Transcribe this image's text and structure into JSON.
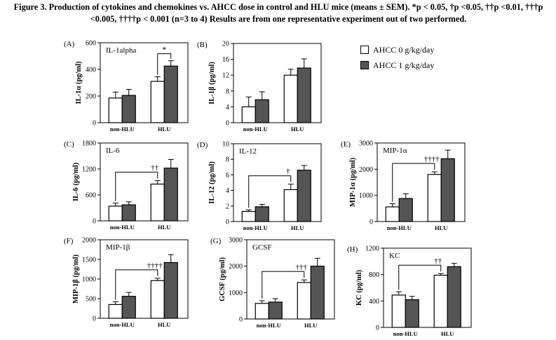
{
  "caption": "Figure 3. Production of cytokines and chemokines vs. AHCC dose in control and HLU mice (means ± SEM). *p < 0.05, †p <0.05, ††p <0.01, †††p <0.005, ††††p < 0.001 (n=3 to 4) Results are from one representative experiment out of two performed.",
  "legend": {
    "entries": [
      {
        "label": "AHCC 0 g/kg/day",
        "style": "open"
      },
      {
        "label": "AHCC 1 g/kg/day",
        "style": "filled"
      }
    ]
  },
  "colors": {
    "open_bar": "#ffffff",
    "filled_bar": "#555555",
    "axis": "#000000"
  },
  "chart_data": [
    {
      "type": "bar",
      "panel": "(A)",
      "title": "IL-1alpha",
      "ylabel": "IL-1α (pg/ml)",
      "ylim": [
        0,
        600
      ],
      "yticks": [
        0,
        200,
        400,
        600
      ],
      "categories": [
        "non-HLU",
        "HLU"
      ],
      "series": [
        {
          "name": "AHCC 0 g/kg/day",
          "values": [
            185,
            310
          ],
          "errors": [
            45,
            35
          ]
        },
        {
          "name": "AHCC 1 g/kg/day",
          "values": [
            205,
            425
          ],
          "errors": [
            45,
            40
          ]
        }
      ],
      "annotation": {
        "symbol": "*",
        "type": "within-HLU"
      }
    },
    {
      "type": "bar",
      "panel": "(B)",
      "title": "",
      "ylabel": "IL-1β (pg/ml)",
      "ylim": [
        0,
        20
      ],
      "yticks": [
        0,
        4,
        8,
        12,
        16,
        20
      ],
      "categories": [
        "non-HLU",
        "HLU"
      ],
      "series": [
        {
          "name": "AHCC 0 g/kg/day",
          "values": [
            4,
            12
          ],
          "errors": [
            2.5,
            1.5
          ]
        },
        {
          "name": "AHCC 1 g/kg/day",
          "values": [
            5.8,
            13.8
          ],
          "errors": [
            2,
            2.3
          ]
        }
      ]
    },
    {
      "type": "bar",
      "panel": "(C)",
      "title": "IL-6",
      "ylabel": "IL-6 (pg/ml)",
      "ylim": [
        0,
        1800
      ],
      "yticks": [
        0,
        600,
        1200,
        1800
      ],
      "categories": [
        "non-HLU",
        "HLU"
      ],
      "series": [
        {
          "name": "AHCC 0 g/kg/day",
          "values": [
            340,
            850
          ],
          "errors": [
            70,
            80
          ]
        },
        {
          "name": "AHCC 1 g/kg/day",
          "values": [
            370,
            1220
          ],
          "errors": [
            70,
            200
          ]
        }
      ],
      "annotation": {
        "symbol": "††",
        "type": "non-HLU-vs-HLU"
      }
    },
    {
      "type": "bar",
      "panel": "(D)",
      "title": "IL-12",
      "ylabel": "IL-12 (pg/ml)",
      "ylim": [
        0,
        10
      ],
      "yticks": [
        0,
        2,
        4,
        6,
        8,
        10
      ],
      "categories": [
        "non-HLU",
        "HLU"
      ],
      "series": [
        {
          "name": "AHCC 0 g/kg/day",
          "values": [
            1.3,
            4.1
          ],
          "errors": [
            0.2,
            0.7
          ]
        },
        {
          "name": "AHCC 1 g/kg/day",
          "values": [
            1.9,
            6.6
          ],
          "errors": [
            0.3,
            0.6
          ]
        }
      ],
      "annotation": {
        "symbol": "†",
        "type": "non-HLU-vs-HLU"
      }
    },
    {
      "type": "bar",
      "panel": "(E)",
      "title": "MIP-1α",
      "ylabel": "MIP-1α (pg/ml)",
      "ylim": [
        0,
        3000
      ],
      "yticks": [
        0,
        1000,
        2000,
        3000
      ],
      "categories": [
        "non-HLU",
        "HLU"
      ],
      "series": [
        {
          "name": "AHCC 0 g/kg/day",
          "values": [
            560,
            1800
          ],
          "errors": [
            120,
            100
          ]
        },
        {
          "name": "AHCC 1 g/kg/day",
          "values": [
            880,
            2400
          ],
          "errors": [
            180,
            330
          ]
        }
      ],
      "annotation": {
        "symbol": "††††",
        "type": "non-HLU-vs-HLU"
      }
    },
    {
      "type": "bar",
      "panel": "(F)",
      "title": "MIP-1β",
      "ylabel": "MIP-1β (pg/ml)",
      "ylim": [
        0,
        2000
      ],
      "yticks": [
        0,
        500,
        1000,
        1500,
        2000
      ],
      "categories": [
        "non-HLU",
        "HLU"
      ],
      "series": [
        {
          "name": "AHCC 0 g/kg/day",
          "values": [
            350,
            960
          ],
          "errors": [
            70,
            60
          ]
        },
        {
          "name": "AHCC 1 g/kg/day",
          "values": [
            560,
            1420
          ],
          "errors": [
            100,
            200
          ]
        }
      ],
      "annotation": {
        "symbol": "††††",
        "type": "non-HLU-vs-HLU"
      }
    },
    {
      "type": "bar",
      "panel": "(G)",
      "title": "GCSF",
      "ylabel": "GCSF (pg/ml)",
      "ylim": [
        0,
        3000
      ],
      "yticks": [
        0,
        1000,
        2000,
        3000
      ],
      "categories": [
        "non-HLU",
        "HLU"
      ],
      "series": [
        {
          "name": "AHCC 0 g/kg/day",
          "values": [
            590,
            1380
          ],
          "errors": [
            100,
            100
          ]
        },
        {
          "name": "AHCC 1 g/kg/day",
          "values": [
            640,
            2000
          ],
          "errors": [
            130,
            300
          ]
        }
      ],
      "annotation": {
        "symbol": "†††",
        "type": "non-HLU-vs-HLU"
      }
    },
    {
      "type": "bar",
      "panel": "(H)",
      "title": "KC",
      "ylabel": "KC (pg/ml)",
      "ylim": [
        0,
        1200
      ],
      "yticks": [
        0,
        400,
        800,
        1200
      ],
      "categories": [
        "non-HLU",
        "HLU"
      ],
      "series": [
        {
          "name": "AHCC 0 g/kg/day",
          "values": [
            490,
            790
          ],
          "errors": [
            50,
            25
          ]
        },
        {
          "name": "AHCC 1 g/kg/day",
          "values": [
            420,
            920
          ],
          "errors": [
            50,
            50
          ]
        }
      ],
      "annotation": {
        "symbol": "††",
        "type": "non-HLU-vs-HLU"
      }
    }
  ]
}
